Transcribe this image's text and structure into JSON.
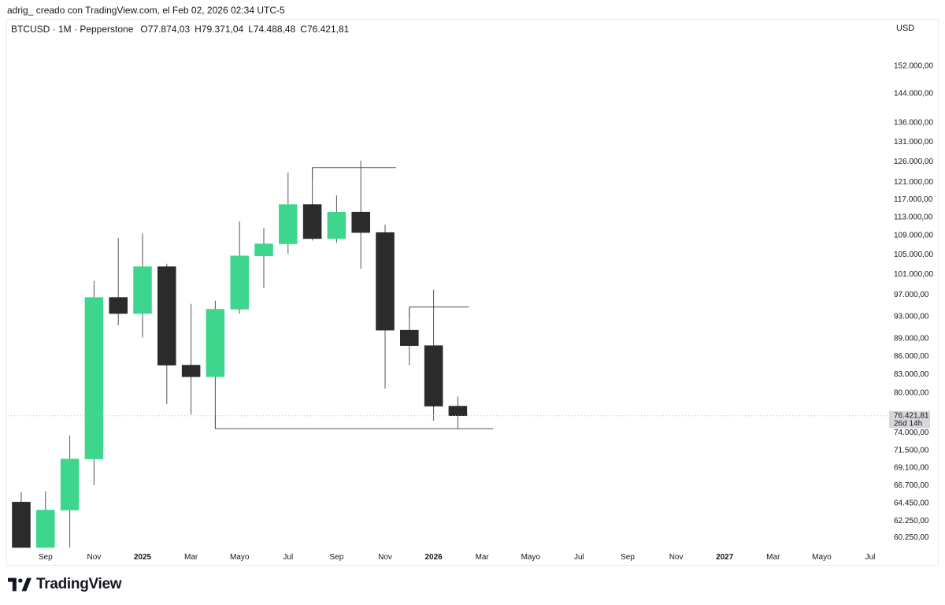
{
  "caption": "adrig_ creado con TradingView.com, el Feb 02, 2026 02:34 UTC-5",
  "legend": {
    "symbol": "BTCUSD · 1M · Pepperstone",
    "open_key": "O",
    "open_val": "77.874,03",
    "high_key": "H",
    "high_val": "79.371,04",
    "low_key": "L",
    "low_val": "74.488,48",
    "close_key": "C",
    "close_val": "76.421,81"
  },
  "currency": "USD",
  "brand": {
    "name": "TradingView",
    "icon": "tradingview-logo-icon"
  },
  "colors": {
    "up": "#3dd68c",
    "down": "#2b2b2b",
    "wick": "#555555",
    "line": "#555555",
    "price_label_bg": "#d6d7da"
  },
  "chart_data": {
    "type": "candlestick",
    "interval": "1M",
    "y_scale": "log",
    "ylim": [
      59000,
      160000
    ],
    "y_ticks": [
      {
        "value": 152000,
        "label": "152.000,00"
      },
      {
        "value": 144000,
        "label": "144.000,00"
      },
      {
        "value": 136000,
        "label": "136.000,00"
      },
      {
        "value": 131000,
        "label": "131.000,00"
      },
      {
        "value": 126000,
        "label": "126.000,00"
      },
      {
        "value": 121000,
        "label": "121.000,00"
      },
      {
        "value": 117000,
        "label": "117.000,00"
      },
      {
        "value": 113000,
        "label": "113.000,00"
      },
      {
        "value": 109000,
        "label": "109.000,00"
      },
      {
        "value": 105000,
        "label": "105.000,00"
      },
      {
        "value": 101000,
        "label": "101.000,00"
      },
      {
        "value": 97000,
        "label": "97.000,00"
      },
      {
        "value": 93000,
        "label": "93.000,00"
      },
      {
        "value": 89000,
        "label": "89.000,00"
      },
      {
        "value": 86000,
        "label": "86.000,00"
      },
      {
        "value": 83000,
        "label": "83.000,00"
      },
      {
        "value": 80000,
        "label": "80.000,00"
      },
      {
        "value": 74000,
        "label": "74.000,00"
      },
      {
        "value": 71500,
        "label": "71.500,00"
      },
      {
        "value": 69100,
        "label": "69.100,00"
      },
      {
        "value": 66700,
        "label": "66.700,00"
      },
      {
        "value": 64450,
        "label": "64.450,00"
      },
      {
        "value": 62250,
        "label": "62.250,00"
      },
      {
        "value": 60250,
        "label": "60.250,00"
      }
    ],
    "x_ticks": [
      {
        "month": "2024-09",
        "label": "Sep",
        "bold": false
      },
      {
        "month": "2024-11",
        "label": "Nov",
        "bold": false
      },
      {
        "month": "2025-01",
        "label": "2025",
        "bold": true
      },
      {
        "month": "2025-03",
        "label": "Mar",
        "bold": false
      },
      {
        "month": "2025-05",
        "label": "Mayo",
        "bold": false
      },
      {
        "month": "2025-07",
        "label": "Jul",
        "bold": false
      },
      {
        "month": "2025-09",
        "label": "Sep",
        "bold": false
      },
      {
        "month": "2025-11",
        "label": "Nov",
        "bold": false
      },
      {
        "month": "2026-01",
        "label": "2026",
        "bold": true
      },
      {
        "month": "2026-03",
        "label": "Mar",
        "bold": false
      },
      {
        "month": "2026-05",
        "label": "Mayo",
        "bold": false
      },
      {
        "month": "2026-07",
        "label": "Jul",
        "bold": false
      },
      {
        "month": "2026-09",
        "label": "Sep",
        "bold": false
      },
      {
        "month": "2026-11",
        "label": "Nov",
        "bold": false
      },
      {
        "month": "2027-01",
        "label": "2027",
        "bold": true
      },
      {
        "month": "2027-03",
        "label": "Mar",
        "bold": false
      },
      {
        "month": "2027-05",
        "label": "Mayo",
        "bold": false
      },
      {
        "month": "2027-07",
        "label": "Jul",
        "bold": false
      }
    ],
    "candles": [
      {
        "month": "2024-08",
        "open": 64500,
        "high": 65800,
        "low": 59000,
        "close": 59000
      },
      {
        "month": "2024-09",
        "open": 59000,
        "high": 65900,
        "low": 59000,
        "close": 63500
      },
      {
        "month": "2024-10",
        "open": 63500,
        "high": 73500,
        "low": 59000,
        "close": 70200
      },
      {
        "month": "2024-11",
        "open": 70200,
        "high": 99600,
        "low": 66700,
        "close": 96400
      },
      {
        "month": "2024-12",
        "open": 96400,
        "high": 108300,
        "low": 91300,
        "close": 93400
      },
      {
        "month": "2025-01",
        "open": 93400,
        "high": 109300,
        "low": 89100,
        "close": 102400
      },
      {
        "month": "2025-02",
        "open": 102400,
        "high": 103000,
        "low": 78200,
        "close": 84400
      },
      {
        "month": "2025-03",
        "open": 84400,
        "high": 95200,
        "low": 76600,
        "close": 82500
      },
      {
        "month": "2025-04",
        "open": 82500,
        "high": 95800,
        "low": 74500,
        "close": 94200
      },
      {
        "month": "2025-05",
        "open": 94200,
        "high": 111900,
        "low": 93400,
        "close": 104600
      },
      {
        "month": "2025-06",
        "open": 104600,
        "high": 110500,
        "low": 98200,
        "close": 107100
      },
      {
        "month": "2025-07",
        "open": 107100,
        "high": 123200,
        "low": 105000,
        "close": 115700
      },
      {
        "month": "2025-08",
        "open": 115700,
        "high": 124400,
        "low": 107800,
        "close": 108200
      },
      {
        "month": "2025-09",
        "open": 108200,
        "high": 117800,
        "low": 107300,
        "close": 114000
      },
      {
        "month": "2025-10",
        "open": 114000,
        "high": 126100,
        "low": 102000,
        "close": 109500
      },
      {
        "month": "2025-11",
        "open": 109500,
        "high": 111200,
        "low": 80600,
        "close": 90400
      },
      {
        "month": "2025-12",
        "open": 90400,
        "high": 94600,
        "low": 84400,
        "close": 87700
      },
      {
        "month": "2026-01",
        "open": 87700,
        "high": 97900,
        "low": 75700,
        "close": 77874
      },
      {
        "month": "2026-02",
        "open": 77874,
        "high": 79371,
        "low": 74488,
        "close": 76421
      }
    ],
    "last_price": {
      "value": 76421.81,
      "label": "76.421,81",
      "countdown": "26d 14h"
    },
    "annotations": [
      {
        "type": "hline",
        "price": 124400,
        "from_month": "2025-08",
        "to_month": "2025-11"
      },
      {
        "type": "hline",
        "price": 94600,
        "from_month": "2025-12",
        "to_month": "2026-02"
      },
      {
        "type": "hline",
        "price": 74500,
        "from_month": "2025-04",
        "to_month": "2026-03"
      }
    ]
  }
}
